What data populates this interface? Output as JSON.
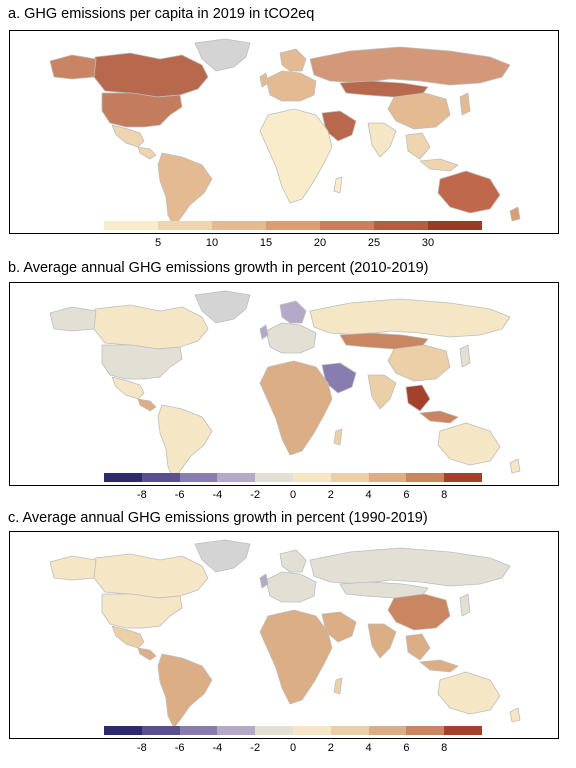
{
  "panels": [
    {
      "title": "a. GHG emissions per capita in 2019 in tCO2eq",
      "legend": {
        "colors": [
          "#f8ecca",
          "#eed5b0",
          "#e4ba92",
          "#d89e76",
          "#c9805f",
          "#b35d44",
          "#9a3a27"
        ],
        "ticks": [
          "5",
          "10",
          "15",
          "20",
          "25",
          "30"
        ]
      },
      "regions": [
        {
          "name": "canada",
          "value": "20-25"
        },
        {
          "name": "united-states",
          "value": "15-20"
        },
        {
          "name": "greenland",
          "value": "no data"
        },
        {
          "name": "mexico",
          "value": "0-5"
        },
        {
          "name": "south-america",
          "value": "5-10"
        },
        {
          "name": "russia",
          "value": "10-15"
        },
        {
          "name": "kazakhstan-mongolia",
          "value": "15-20"
        },
        {
          "name": "europe",
          "value": "5-10"
        },
        {
          "name": "middle-east",
          "value": "20-25"
        },
        {
          "name": "china",
          "value": "5-10"
        },
        {
          "name": "india",
          "value": "0-5"
        },
        {
          "name": "africa",
          "value": "0-5"
        },
        {
          "name": "australia",
          "value": "20-25"
        }
      ]
    },
    {
      "title": "b. Average annual GHG emissions growth in percent (2010-2019)",
      "legend": {
        "colors": [
          "#2e2a6b",
          "#5b508f",
          "#877dae",
          "#b4aac8",
          "#e2e0d4",
          "#f5e7c6",
          "#ebcfa7",
          "#dcae85",
          "#c98661",
          "#a4412d"
        ],
        "ticks": [
          "-8",
          "-6",
          "-4",
          "-2",
          "0",
          "2",
          "4",
          "6",
          "8"
        ]
      },
      "regions": [
        {
          "name": "canada",
          "value": "-2-0"
        },
        {
          "name": "united-states",
          "value": "-2-0"
        },
        {
          "name": "greenland",
          "value": "no data"
        },
        {
          "name": "south-america",
          "value": "0-2"
        },
        {
          "name": "russia",
          "value": "0-2"
        },
        {
          "name": "europe",
          "value": "-2-0"
        },
        {
          "name": "china",
          "value": "2-4"
        },
        {
          "name": "africa",
          "value": "2-4"
        },
        {
          "name": "australia",
          "value": "0-2"
        }
      ]
    },
    {
      "title": "c. Average annual GHG emissions growth in percent (1990-2019)",
      "legend": {
        "colors": [
          "#2e2a6b",
          "#5b508f",
          "#877dae",
          "#b4aac8",
          "#e2e0d4",
          "#f5e7c6",
          "#ebcfa7",
          "#dcae85",
          "#c98661",
          "#a4412d"
        ],
        "ticks": [
          "-8",
          "-6",
          "-4",
          "-2",
          "0",
          "2",
          "4",
          "6",
          "8"
        ]
      },
      "regions": [
        {
          "name": "canada",
          "value": "0-2"
        },
        {
          "name": "united-states",
          "value": "0-2"
        },
        {
          "name": "greenland",
          "value": "no data"
        },
        {
          "name": "south-america",
          "value": "2-4"
        },
        {
          "name": "russia",
          "value": "-2-0"
        },
        {
          "name": "europe",
          "value": "-2-0"
        },
        {
          "name": "china",
          "value": "4-6"
        },
        {
          "name": "africa",
          "value": "2-4"
        },
        {
          "name": "australia",
          "value": "0-2"
        }
      ]
    }
  ],
  "map_colors": {
    "no_data": "#d4d4d4",
    "border": "#bdbdbd"
  }
}
